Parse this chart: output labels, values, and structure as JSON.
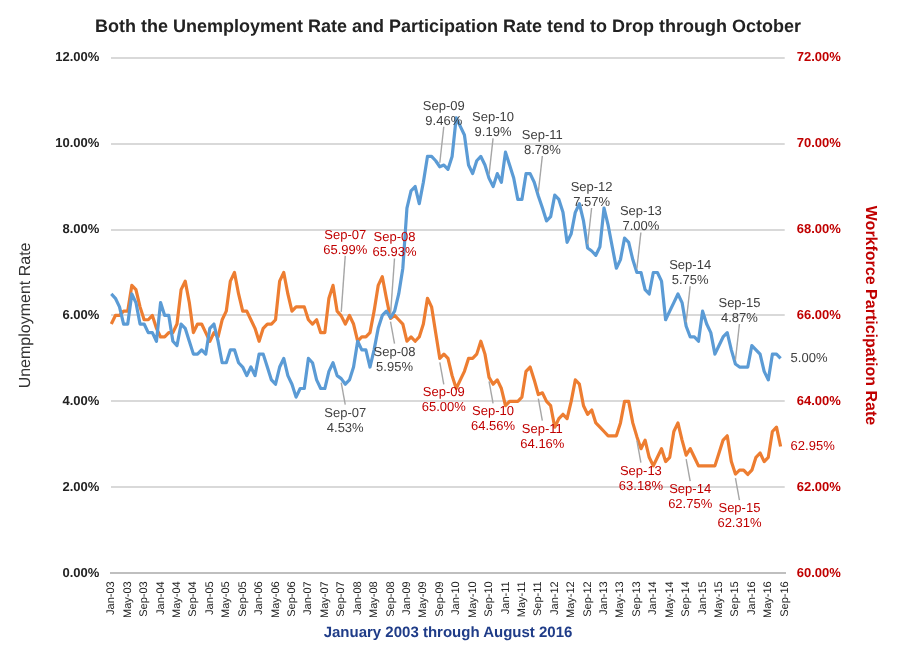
{
  "chart_data": {
    "type": "line",
    "title": "Both the Unemployment Rate and Participation Rate tend to Drop through October",
    "xlabel": "January 2003 through August 2016",
    "ylabel": "Unemployment Rate",
    "y2label": "Workforce Participation Rate",
    "categories": [
      "Jan-03",
      null,
      null,
      null,
      "May-03",
      null,
      null,
      null,
      "Sep-03",
      null,
      null,
      null,
      "Jan-04",
      null,
      null,
      null,
      "May-04",
      null,
      null,
      null,
      "Sep-04",
      null,
      null,
      null,
      "Jan-05",
      null,
      null,
      null,
      "May-05",
      null,
      null,
      null,
      "Sep-05",
      null,
      null,
      null,
      "Jan-06",
      null,
      null,
      null,
      "May-06",
      null,
      null,
      null,
      "Sep-06",
      null,
      null,
      null,
      "Jan-07",
      null,
      null,
      null,
      "May-07",
      null,
      null,
      null,
      "Sep-07",
      null,
      null,
      null,
      "Jan-08",
      null,
      null,
      null,
      "May-08",
      null,
      null,
      null,
      "Sep-08",
      null,
      null,
      null,
      "Jan-09",
      null,
      null,
      null,
      "May-09",
      null,
      null,
      null,
      "Sep-09",
      null,
      null,
      null,
      "Jan-10",
      null,
      null,
      null,
      "May-10",
      null,
      null,
      null,
      "Sep-10",
      null,
      null,
      null,
      "Jan-11",
      null,
      null,
      null,
      "May-11",
      null,
      null,
      null,
      "Sep-11",
      null,
      null,
      null,
      "Jan-12",
      null,
      null,
      null,
      "May-12",
      null,
      null,
      null,
      "Sep-12",
      null,
      null,
      null,
      "Jan-13",
      null,
      null,
      null,
      "May-13",
      null,
      null,
      null,
      "Sep-13",
      null,
      null,
      null,
      "Jan-14",
      null,
      null,
      null,
      "May-14",
      null,
      null,
      null,
      "Sep-14",
      null,
      null,
      null,
      "Jan-15",
      null,
      null,
      null,
      "May-15",
      null,
      null,
      null,
      "Sep-15",
      null,
      null,
      null,
      "Jan-16",
      null,
      null,
      null,
      "May-16",
      null,
      null,
      null,
      "Sep-16"
    ],
    "series": [
      {
        "color": "#5b9bd5",
        "axis": "y",
        "values": [
          6.5,
          6.4,
          6.2,
          5.8,
          5.8,
          6.5,
          6.3,
          5.8,
          5.8,
          5.6,
          5.6,
          5.4,
          6.3,
          6.0,
          6.0,
          5.4,
          5.3,
          5.8,
          5.7,
          5.4,
          5.1,
          5.1,
          5.2,
          5.1,
          5.7,
          5.8,
          5.4,
          4.9,
          4.9,
          5.2,
          5.2,
          4.9,
          4.8,
          4.6,
          4.8,
          4.6,
          5.1,
          5.1,
          4.8,
          4.5,
          4.4,
          4.8,
          5.0,
          4.6,
          4.4,
          4.1,
          4.3,
          4.3,
          5.0,
          4.9,
          4.5,
          4.3,
          4.3,
          4.7,
          4.9,
          4.6,
          4.53,
          4.4,
          4.5,
          4.8,
          5.4,
          5.2,
          5.2,
          4.8,
          5.2,
          5.7,
          6.0,
          6.1,
          5.95,
          6.1,
          6.5,
          7.1,
          8.5,
          8.9,
          9.0,
          8.6,
          9.1,
          9.7,
          9.7,
          9.6,
          9.46,
          9.5,
          9.4,
          9.7,
          10.6,
          10.4,
          10.2,
          9.5,
          9.3,
          9.6,
          9.7,
          9.5,
          9.19,
          9.0,
          9.3,
          9.1,
          9.8,
          9.5,
          9.2,
          8.7,
          8.7,
          9.3,
          9.3,
          9.1,
          8.78,
          8.5,
          8.2,
          8.3,
          8.8,
          8.7,
          8.4,
          7.7,
          7.9,
          8.4,
          8.6,
          8.2,
          7.57,
          7.5,
          7.4,
          7.6,
          8.5,
          8.1,
          7.6,
          7.1,
          7.3,
          7.8,
          7.7,
          7.3,
          7.0,
          7.0,
          6.6,
          6.5,
          7.0,
          7.0,
          6.8,
          5.9,
          6.1,
          6.3,
          6.5,
          6.3,
          5.75,
          5.5,
          5.5,
          5.4,
          6.1,
          5.8,
          5.6,
          5.1,
          5.3,
          5.5,
          5.6,
          5.2,
          4.87,
          4.8,
          4.8,
          4.8,
          5.3,
          5.2,
          5.1,
          4.7,
          4.5,
          5.1,
          5.1,
          5.0,
          null
        ],
        "value_labels": [
          null,
          null,
          null,
          null,
          null,
          null,
          null,
          null,
          null,
          null,
          null,
          null,
          null,
          null,
          null,
          null,
          null,
          null,
          null,
          null,
          null,
          null,
          null,
          null,
          null,
          null,
          null,
          null,
          null,
          null,
          null,
          null,
          null,
          null,
          null,
          null,
          null,
          null,
          null,
          null,
          null,
          null,
          null,
          null,
          null,
          null,
          null,
          null,
          null,
          null,
          null,
          null,
          null,
          null,
          null,
          null,
          "Sep-07\n4.53%",
          null,
          null,
          null,
          null,
          null,
          null,
          null,
          null,
          null,
          null,
          null,
          "Sep-08\n5.95%",
          null,
          null,
          null,
          null,
          null,
          null,
          null,
          null,
          null,
          null,
          null,
          "Sep-09\n9.46%",
          null,
          null,
          null,
          null,
          null,
          null,
          null,
          null,
          null,
          null,
          null,
          "Sep-10\n9.19%",
          null,
          null,
          null,
          null,
          null,
          null,
          null,
          null,
          null,
          null,
          null,
          "Sep-11\n8.78%",
          null,
          null,
          null,
          null,
          null,
          null,
          null,
          null,
          null,
          null,
          null,
          "Sep-12\n7.57%",
          null,
          null,
          null,
          null,
          null,
          null,
          null,
          null,
          null,
          null,
          null,
          "Sep-13\n7.00%",
          null,
          null,
          null,
          null,
          null,
          null,
          null,
          null,
          null,
          null,
          null,
          "Sep-14\n5.75%",
          null,
          null,
          null,
          null,
          null,
          null,
          null,
          null,
          null,
          null,
          null,
          "Sep-15\n4.87%",
          null,
          null,
          null,
          null,
          null,
          null,
          null,
          null,
          null,
          null,
          "5.00%",
          null
        ]
      },
      {
        "color": "#ed7d31",
        "axis": "y2",
        "values": [
          65.8,
          66.0,
          66.0,
          66.1,
          66.1,
          66.7,
          66.6,
          66.2,
          65.9,
          65.9,
          66.0,
          65.7,
          65.5,
          65.5,
          65.6,
          65.6,
          65.8,
          66.6,
          66.8,
          66.3,
          65.6,
          65.8,
          65.8,
          65.6,
          65.4,
          65.6,
          65.5,
          65.9,
          66.1,
          66.8,
          67.0,
          66.5,
          66.1,
          66.1,
          65.9,
          65.7,
          65.4,
          65.7,
          65.8,
          65.8,
          65.9,
          66.8,
          67.0,
          66.5,
          66.1,
          66.2,
          66.2,
          66.2,
          65.9,
          65.8,
          65.9,
          65.6,
          65.6,
          66.4,
          66.7,
          66.1,
          65.99,
          65.8,
          66.0,
          65.8,
          65.4,
          65.5,
          65.5,
          65.6,
          66.1,
          66.7,
          66.9,
          66.4,
          65.93,
          66.0,
          65.9,
          65.8,
          65.4,
          65.5,
          65.4,
          65.5,
          65.8,
          66.4,
          66.2,
          65.6,
          65.0,
          65.1,
          65.0,
          64.6,
          64.3,
          64.5,
          64.7,
          65.0,
          65.0,
          65.1,
          65.4,
          65.1,
          64.56,
          64.4,
          64.5,
          64.3,
          63.9,
          64.0,
          64.0,
          64.0,
          64.1,
          64.7,
          64.8,
          64.5,
          64.16,
          64.2,
          64.0,
          63.9,
          63.4,
          63.6,
          63.7,
          63.6,
          64.0,
          64.5,
          64.4,
          63.9,
          63.7,
          63.8,
          63.5,
          63.4,
          63.3,
          63.2,
          63.2,
          63.2,
          63.5,
          64.0,
          64.0,
          63.5,
          63.18,
          62.9,
          63.1,
          62.7,
          62.5,
          62.7,
          62.9,
          62.6,
          62.7,
          63.3,
          63.5,
          63.1,
          62.75,
          62.9,
          62.7,
          62.5,
          62.5,
          62.5,
          62.5,
          62.5,
          62.8,
          63.1,
          63.2,
          62.6,
          62.31,
          62.4,
          62.4,
          62.3,
          62.4,
          62.7,
          62.8,
          62.6,
          62.7,
          63.3,
          63.4,
          62.95,
          null
        ],
        "value_labels": [
          null,
          null,
          null,
          null,
          null,
          null,
          null,
          null,
          null,
          null,
          null,
          null,
          null,
          null,
          null,
          null,
          null,
          null,
          null,
          null,
          null,
          null,
          null,
          null,
          null,
          null,
          null,
          null,
          null,
          null,
          null,
          null,
          null,
          null,
          null,
          null,
          null,
          null,
          null,
          null,
          null,
          null,
          null,
          null,
          null,
          null,
          null,
          null,
          null,
          null,
          null,
          null,
          null,
          null,
          null,
          null,
          "Sep-07\n65.99%",
          null,
          null,
          null,
          null,
          null,
          null,
          null,
          null,
          null,
          null,
          null,
          "Sep-08\n65.93%",
          null,
          null,
          null,
          null,
          null,
          null,
          null,
          null,
          null,
          null,
          null,
          "Sep-09\n65.00%",
          null,
          null,
          null,
          null,
          null,
          null,
          null,
          null,
          null,
          null,
          null,
          "Sep-10\n64.56%",
          null,
          null,
          null,
          null,
          null,
          null,
          null,
          null,
          null,
          null,
          null,
          "Sep-11\n64.16%",
          null,
          null,
          null,
          null,
          null,
          null,
          null,
          null,
          null,
          null,
          null,
          null,
          null,
          null,
          null,
          null,
          null,
          null,
          null,
          null,
          null,
          null,
          null,
          "Sep-13\n63.18%",
          null,
          null,
          null,
          null,
          null,
          null,
          null,
          null,
          null,
          null,
          null,
          "Sep-14\n62.75%",
          null,
          null,
          null,
          null,
          null,
          null,
          null,
          null,
          null,
          null,
          null,
          "Sep-15\n62.31%",
          null,
          null,
          null,
          null,
          null,
          null,
          null,
          null,
          null,
          null,
          "62.95%",
          null
        ]
      }
    ],
    "ylim": [
      0,
      12
    ],
    "yticks": [
      {
        "value": 0,
        "label": "0.00%"
      },
      {
        "value": 2,
        "label": "2.00%"
      },
      {
        "value": 4,
        "label": "4.00%"
      },
      {
        "value": 6,
        "label": "6.00%"
      },
      {
        "value": 8,
        "label": "8.00%"
      },
      {
        "value": 10,
        "label": "10.00%"
      },
      {
        "value": 12,
        "label": "12.00%"
      }
    ],
    "y2lim": [
      60,
      72
    ],
    "y2ticks": [
      {
        "value": 60,
        "label": "60.00%"
      },
      {
        "value": 62,
        "label": "62.00%"
      },
      {
        "value": 64,
        "label": "64.00%"
      },
      {
        "value": 66,
        "label": "66.00%"
      },
      {
        "value": 68,
        "label": "68.00%"
      },
      {
        "value": 70,
        "label": "70.00%"
      },
      {
        "value": 72,
        "label": "72.00%"
      }
    ],
    "grid": "y",
    "legend": false,
    "marker": "none",
    "line_style": "solid"
  }
}
